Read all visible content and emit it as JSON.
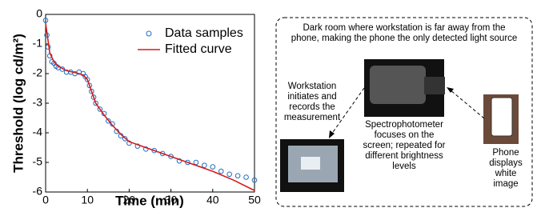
{
  "chart_data": {
    "type": "scatter-line",
    "xlabel": "Time (min)",
    "ylabel": "Threshold (log cd/m²)",
    "xlim": [
      0,
      50
    ],
    "xticks": [
      0,
      10,
      20,
      30,
      40,
      50
    ],
    "ylim": [
      -6,
      0
    ],
    "yticks": [
      0,
      -1,
      -2,
      -3,
      -4,
      -5,
      -6
    ],
    "grid": false,
    "legend": "upper-right",
    "series": [
      {
        "name": "Data samples",
        "type": "scatter",
        "color": "#1f6fc0",
        "x": [
          0,
          0.3,
          0.6,
          1,
          1.5,
          2,
          2.5,
          3,
          4,
          5,
          6,
          7,
          8,
          9,
          9.5,
          10,
          10.5,
          11,
          11.5,
          12,
          13,
          14,
          15,
          16,
          17,
          18,
          19,
          20,
          22,
          24,
          26,
          28,
          30,
          32,
          34,
          36,
          38,
          40,
          42,
          44,
          46,
          48,
          50
        ],
        "values": [
          -0.2,
          -0.7,
          -1.1,
          -1.4,
          -1.6,
          -1.65,
          -1.75,
          -1.8,
          -1.85,
          -1.95,
          -1.95,
          -2.0,
          -1.95,
          -2.0,
          -2.1,
          -2.2,
          -2.4,
          -2.6,
          -2.8,
          -3.0,
          -3.2,
          -3.35,
          -3.6,
          -3.7,
          -3.95,
          -4.1,
          -4.2,
          -4.35,
          -4.45,
          -4.55,
          -4.6,
          -4.7,
          -4.8,
          -4.95,
          -5.0,
          -5.0,
          -5.1,
          -5.15,
          -5.3,
          -5.4,
          -5.45,
          -5.5,
          -5.6
        ]
      },
      {
        "name": "Fitted curve",
        "type": "line",
        "color": "#d7191c",
        "x": [
          0,
          0.5,
          1,
          2,
          3,
          5,
          8,
          9,
          10,
          11,
          12,
          14,
          16,
          18,
          20,
          25,
          30,
          35,
          40,
          45,
          50
        ],
        "values": [
          -0.3,
          -0.8,
          -1.3,
          -1.6,
          -1.75,
          -1.9,
          -2.0,
          -2.05,
          -2.2,
          -2.6,
          -3.0,
          -3.4,
          -3.75,
          -4.05,
          -4.3,
          -4.55,
          -4.8,
          -5.05,
          -5.3,
          -5.6,
          -5.95
        ]
      }
    ]
  },
  "diagram": {
    "caption": [
      "Dark room where workstation is far away from the",
      "phone, making the phone the only detected light source"
    ],
    "workstation": [
      "Workstation",
      "initiates and",
      "records the",
      "measurement"
    ],
    "spectrophotometer": [
      "Spectrophotometer",
      "focuses on the",
      "screen; repeated for",
      "different brightness",
      "levels"
    ],
    "phone": [
      "Phone",
      "displays",
      "white",
      "image"
    ]
  }
}
